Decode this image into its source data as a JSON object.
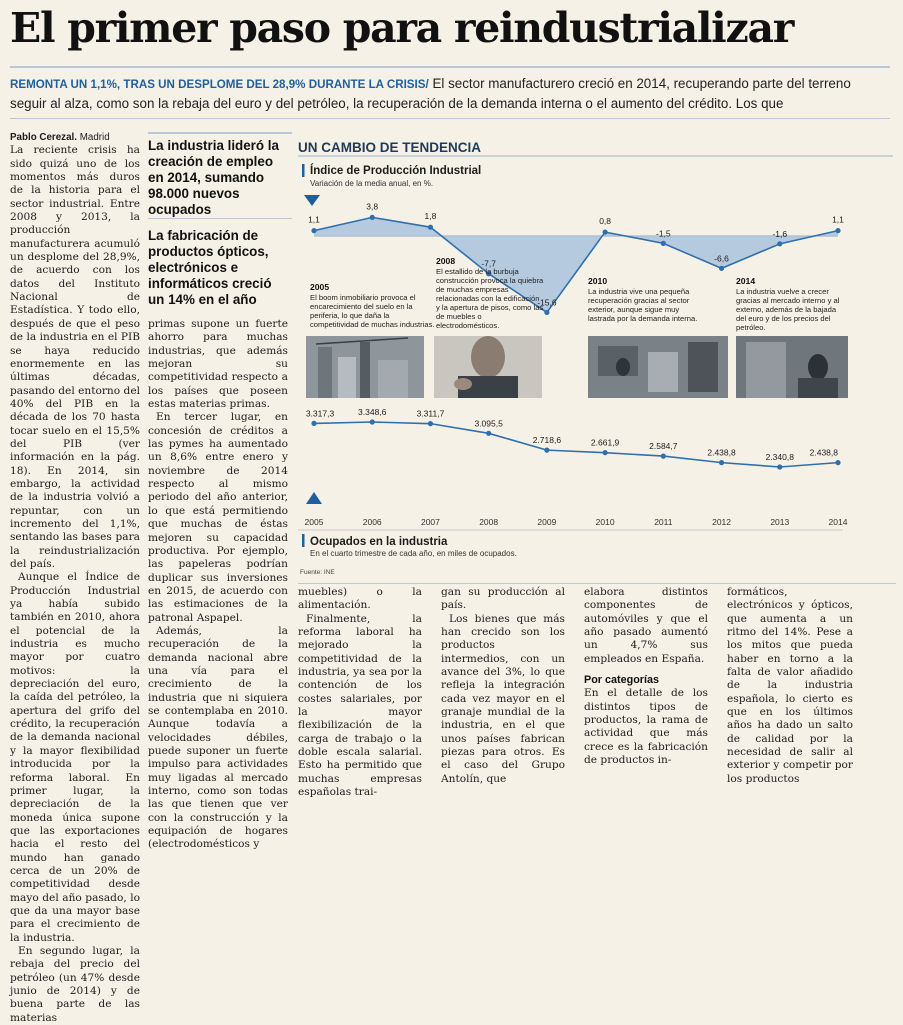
{
  "headline": "El primer paso para reindustrializar",
  "deck": {
    "kicker": "REMONTA UN 1,1%, TRAS UN DESPLOME DEL 28,9% DURANTE LA CRISIS/",
    "line1": " El sector manufacturero creció en 2014, recuperando parte del terreno",
    "line2": "seguir al alza, como son la rebaja del euro y del petróleo, la recuperación de la demanda interna o el aumento del crédito. Los que"
  },
  "byline": {
    "author": "Pablo Cerezal.",
    "place": " Madrid"
  },
  "col1": [
    "La reciente crisis ha sido quizá uno de los momentos más duros de la historia para el sector industrial. Entre 2008 y 2013, la producción manufacturera acumuló un desplome del 28,9%, de acuerdo con los datos del Instituto Nacional de Estadística. Y todo ello, después de que el peso de la industria en el PIB se haya reducido enormemente en las últimas décadas, pasando del entorno del 40% del PIB en la década de los 70 hasta tocar suelo en el 15,5% del PIB (ver información en la pág. 18). En 2014, sin embargo, la actividad de la industria volvió a repuntar, con un incremento del 1,1%, sentando las bases para la reindustrialización del país.",
    "Aunque el Índice de Producción Industrial ya había subido también en 2010, ahora el potencial de la industria es mucho mayor por cuatro motivos: la depreciación del euro, la caída del petróleo, la apertura del grifo del crédito, la recuperación de la demanda nacional y la mayor flexibilidad introducida por la reforma laboral. En primer lugar, la depreciación de la moneda única supone que las exportaciones hacia el resto del mundo han ganado cerca de un 20% de competitividad desde mayo del año pasado, lo que da una mayor base para el crecimiento de la industria.",
    "En segundo lugar, la rebaja del precio del petróleo (un 47% desde junio de 2014) y de buena parte de las materias"
  ],
  "pull1": "La industria lideró la creación de empleo en 2014, sumando 98.000 nuevos ocupados",
  "pull2": "La fabricación de productos ópticos, electrónicos e informáticos creció un 14% en el año",
  "col2": [
    "primas supone un fuerte ahorro para muchas industrias, que además mejoran su competitividad respecto a los países que poseen estas materias primas.",
    "En tercer lugar, en concesión de créditos a las pymes ha aumentado un 8,6% entre enero y noviembre de 2014 respecto al mismo periodo del año anterior, lo que está permitiendo que muchas de éstas mejoren su capacidad productiva. Por ejemplo, las papeleras podrían duplicar sus inversiones en 2015, de acuerdo con las estimaciones de la patronal Aspapel.",
    "Además, la recuperación de la demanda nacional abre una vía para el crecimiento de la industria que ni siquiera se contemplaba en 2010. Aunque todavía a velocidades débiles, puede suponer un fuerte impulso para actividades muy ligadas al mercado interno, como son todas las que tienen que ver con la construcción y la equipación de hogares (electrodomésticos y"
  ],
  "col3": [
    "muebles) o la alimentación.",
    "Finalmente, la reforma laboral ha mejorado la competitividad de la industria, ya sea por la contención de los costes salariales, por la mayor flexibilización de la carga de trabajo o la doble escala salarial. Esto ha permitido que muchas empresas españolas trai-"
  ],
  "col4": [
    "gan su producción al país.",
    "Los bienes que más han crecido son los productos intermedios, con un avance del 3%, lo que refleja la integración cada vez mayor en el granaje mundial de la industria, en el que unos países fabrican piezas para otros. Es el caso del Grupo Antolín, que"
  ],
  "col5": [
    "elabora distintos componentes de automóviles y que el año pasado aumentó un 4,7% sus empleados en España."
  ],
  "col5_subhead": "Por categorías",
  "col5b": [
    "En el detalle de los distintos tipos de productos, la rama de actividad que más crece es la fabricación de productos in-"
  ],
  "col6": [
    "formáticos, electrónicos y ópticos, que aumenta a un ritmo del 14%. Pese a los mitos que pueda haber en torno a la falta de valor añadido de la industria española, lo cierto es que en los últimos años ha dado un salto de calidad por la necesidad de salir al exterior y competir por los productos"
  ],
  "graphic": {
    "title": "UN CAMBIO DE TENDENCIA",
    "ipi_title": "Índice de Producción Industrial",
    "ipi_subtitle": "Variación de la media anual, en %.",
    "emp_title": "Ocupados en la industria",
    "emp_subtitle": "En el cuarto trimestre de cada año, en miles de ocupados.",
    "source": "Fuente: INE",
    "notes": [
      {
        "year": "2005",
        "text": "El boom inmobiliario provoca el encarecimiento del suelo en la periferia, lo que daña la competitividad de muchas industrias."
      },
      {
        "year": "2008",
        "text": "El estallido de la burbuja construcción provoca la quiebra de muchas empresas relacionadas con la edificación y la apertura de pisos, como las de muebles o electrodomésticos."
      },
      {
        "year": "2010",
        "text": "La industria vive una pequeña recuperación gracias al sector exterior, aunque sigue muy lastrada por la demanda interna."
      },
      {
        "year": "2014",
        "text": "La industria vuelve a crecer gracias al mercado interno y al externo, además de la bajada del euro y de los precios del petróleo."
      }
    ]
  },
  "chart_data": [
    {
      "type": "area",
      "title": "Índice de Producción Industrial",
      "subtitle": "Variación de la media anual, en %.",
      "x": [
        "2005",
        "2006",
        "2007",
        "2008",
        "2009",
        "2010",
        "2011",
        "2012",
        "2013",
        "2014"
      ],
      "values": [
        1.1,
        3.8,
        1.8,
        -7.7,
        -15.6,
        0.8,
        -1.5,
        -6.6,
        -1.6,
        1.1
      ],
      "labels": [
        "1,1",
        "3,8",
        "1,8",
        "-7,7",
        "-15,6",
        "0,8",
        "-1,5",
        "-6,6",
        "-1,6",
        "1,1"
      ]
    },
    {
      "type": "line",
      "title": "Ocupados en la industria",
      "subtitle": "En el cuarto trimestre de cada año, en miles de ocupados.",
      "x": [
        "2005",
        "2006",
        "2007",
        "2008",
        "2009",
        "2010",
        "2011",
        "2012",
        "2013",
        "2014"
      ],
      "values": [
        3317.3,
        3348.6,
        3311.7,
        3095.5,
        2718.6,
        2661.9,
        2584.7,
        2438.8,
        2340.8,
        2438.8
      ],
      "labels": [
        "3.317,3",
        "3.348,6",
        "3.311,7",
        "3.095,5",
        "2.718,6",
        "2.661,9",
        "2.584,7",
        "2.438,8",
        "2.340,8",
        "2.438,8"
      ]
    }
  ],
  "colors": {
    "accent": "#1f5f9d",
    "area": "#a9c3dc",
    "line": "#2f6fae",
    "rule": "#b7c9d6"
  }
}
